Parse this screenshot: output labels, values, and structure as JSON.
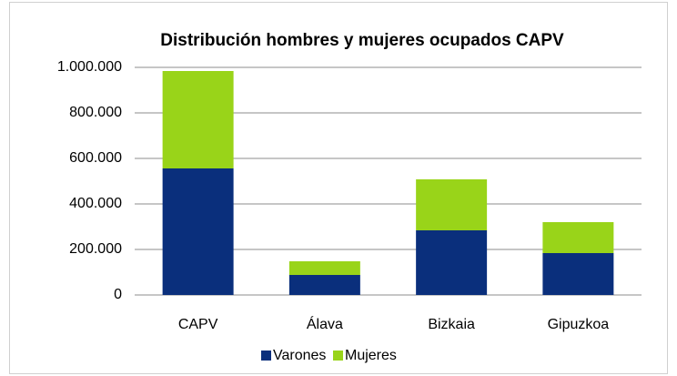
{
  "chart_data": {
    "type": "stacked_bar",
    "title": "Distribución hombres y mujeres ocupados CAPV",
    "categories": [
      "CAPV",
      "Álava",
      "Bizkaia",
      "Gipuzkoa"
    ],
    "series": [
      {
        "name": "Varones",
        "color": "#0a2f7c",
        "values": [
          556000,
          88000,
          284000,
          184000
        ]
      },
      {
        "name": "Mujeres",
        "color": "#99d419",
        "values": [
          428000,
          60000,
          224000,
          136000
        ]
      }
    ],
    "ylim": [
      0,
      1000000
    ],
    "yticks": [
      0,
      {
        "value": 200000,
        "label": "200.000"
      },
      {
        "value": 400000,
        "label": "400.000"
      },
      {
        "value": 600000,
        "label": "600.000"
      },
      {
        "value": 800000,
        "label": "800.000"
      },
      {
        "value": 1000000,
        "label": "1.000.000"
      }
    ],
    "grid": true,
    "legend": "bottom"
  }
}
